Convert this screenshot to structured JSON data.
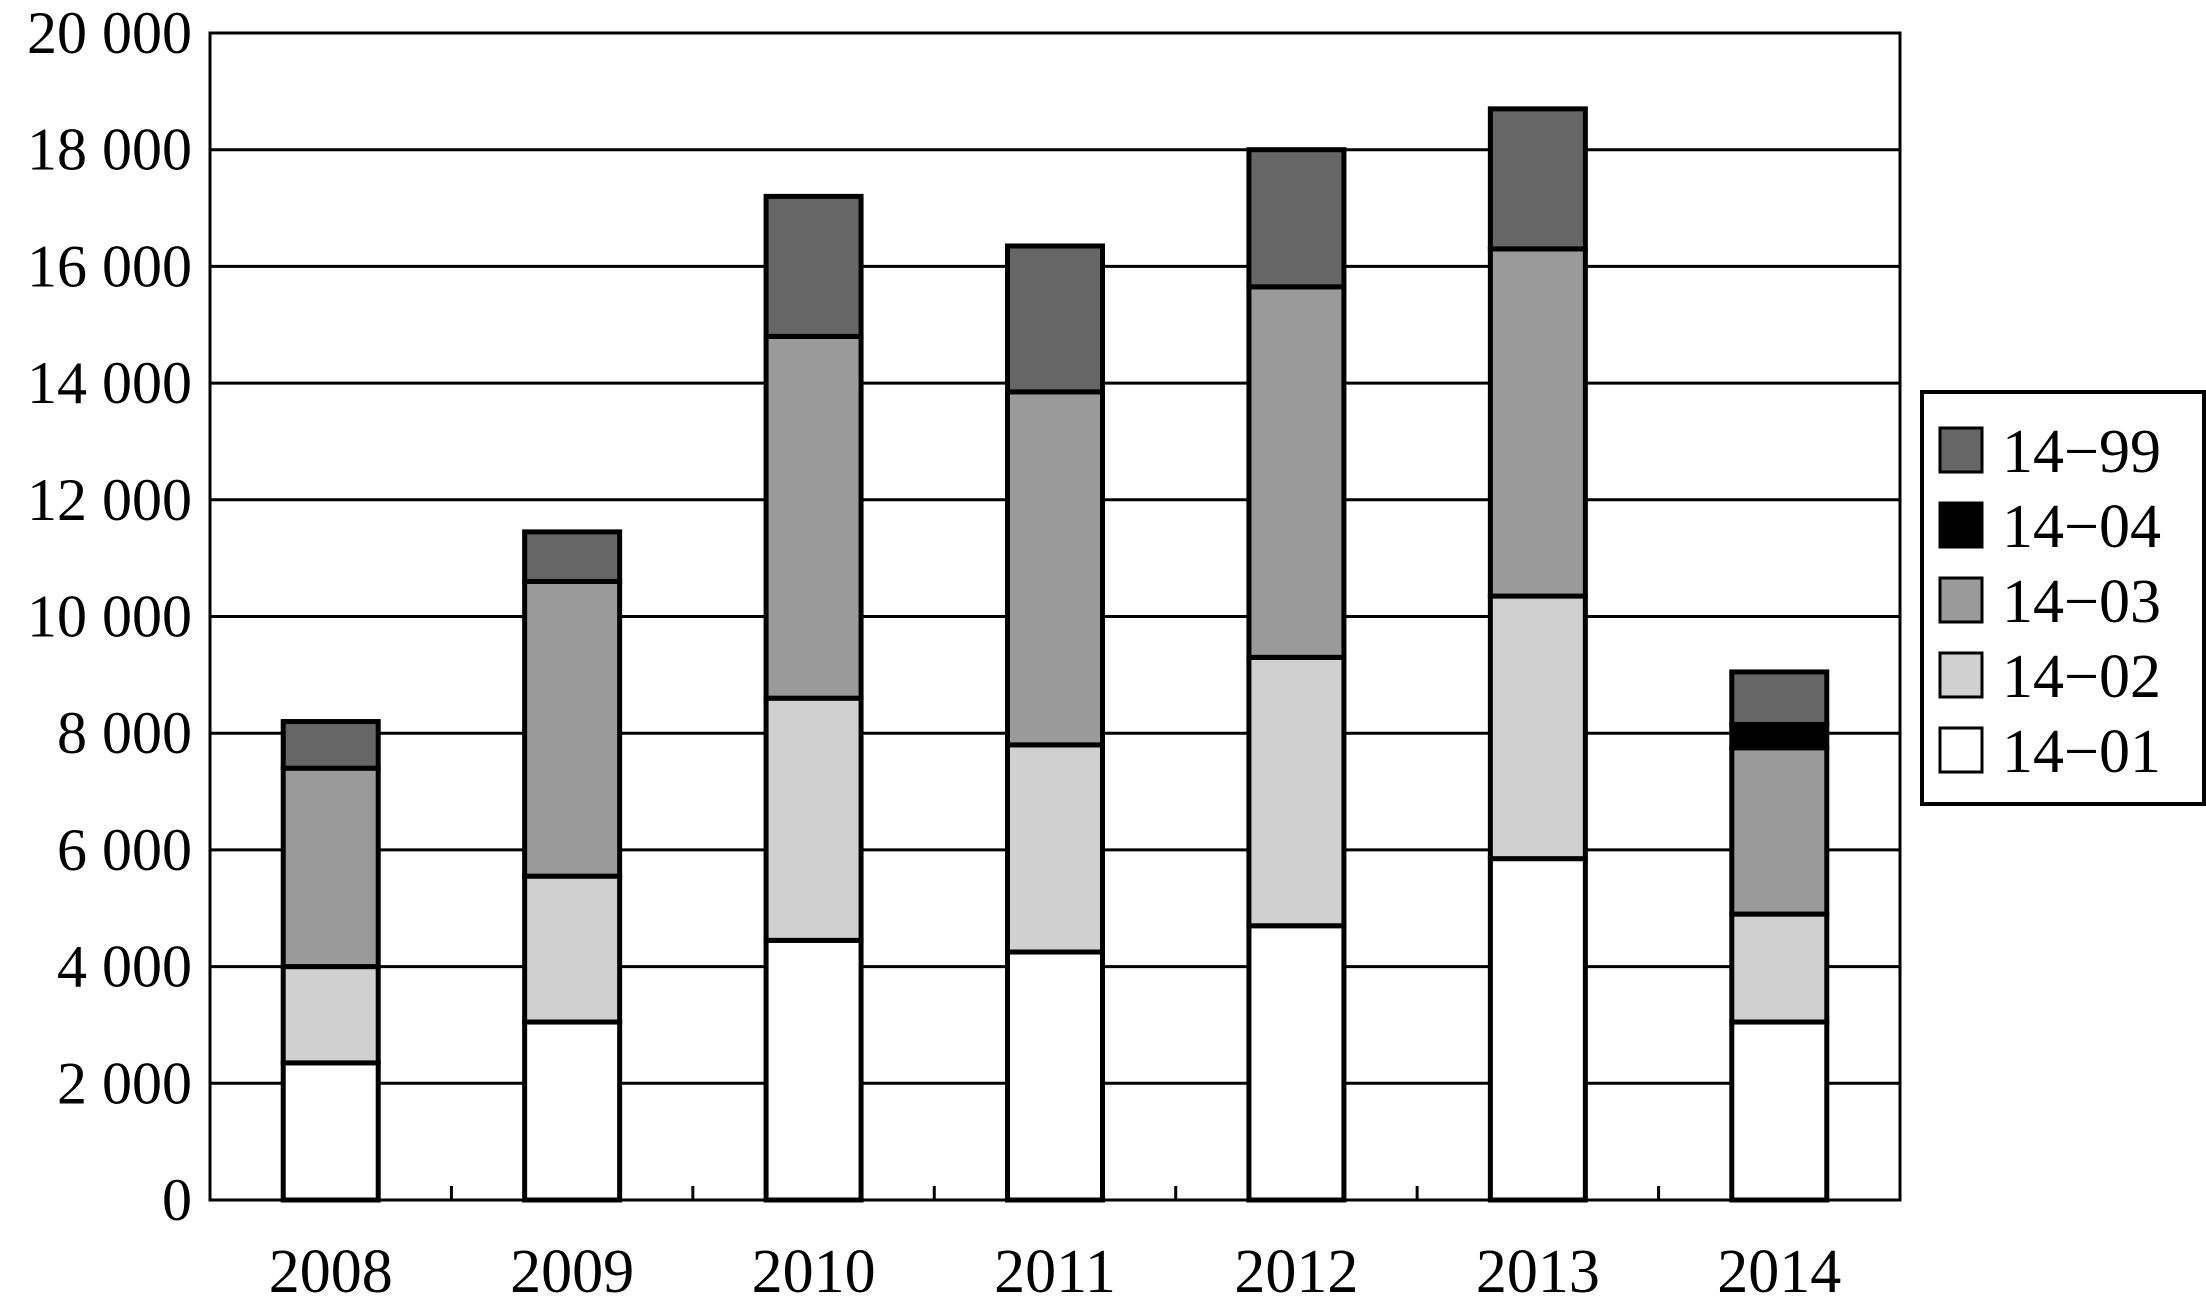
{
  "chart_data": {
    "type": "bar",
    "stacked": true,
    "categories": [
      "2008",
      "2009",
      "2010",
      "2011",
      "2012",
      "2013",
      "2014"
    ],
    "series": [
      {
        "name": "14−01",
        "values": [
          2350,
          3050,
          4450,
          4250,
          4700,
          5850,
          3050
        ]
      },
      {
        "name": "14−02",
        "values": [
          1650,
          2500,
          4150,
          3550,
          4600,
          4500,
          1850
        ]
      },
      {
        "name": "14−03",
        "values": [
          3400,
          5050,
          6200,
          6050,
          6350,
          5950,
          2850
        ]
      },
      {
        "name": "14−04",
        "values": [
          0,
          0,
          0,
          0,
          0,
          0,
          400
        ]
      },
      {
        "name": "14−99",
        "values": [
          800,
          850,
          2400,
          2500,
          2350,
          2400,
          900
        ]
      }
    ],
    "colors": {
      "14−01": "#ffffff",
      "14−02": "#d0d0d0",
      "14−03": "#9a9a9a",
      "14−04": "#000000",
      "14−99": "#666666"
    },
    "ylim": [
      0,
      20000
    ],
    "y_ticks": [
      0,
      2000,
      4000,
      6000,
      8000,
      10000,
      12000,
      14000,
      16000,
      18000,
      20000
    ],
    "y_tick_labels": [
      "0",
      "2 000",
      "4 000",
      "6 000",
      "8 000",
      "10 000",
      "12 000",
      "14 000",
      "16 000",
      "18 000",
      "20 000"
    ],
    "grid": true,
    "legend_order": [
      "14−99",
      "14−04",
      "14−03",
      "14−02",
      "14−01"
    ],
    "legend_position": "right",
    "title": "",
    "xlabel": "",
    "ylabel": ""
  }
}
